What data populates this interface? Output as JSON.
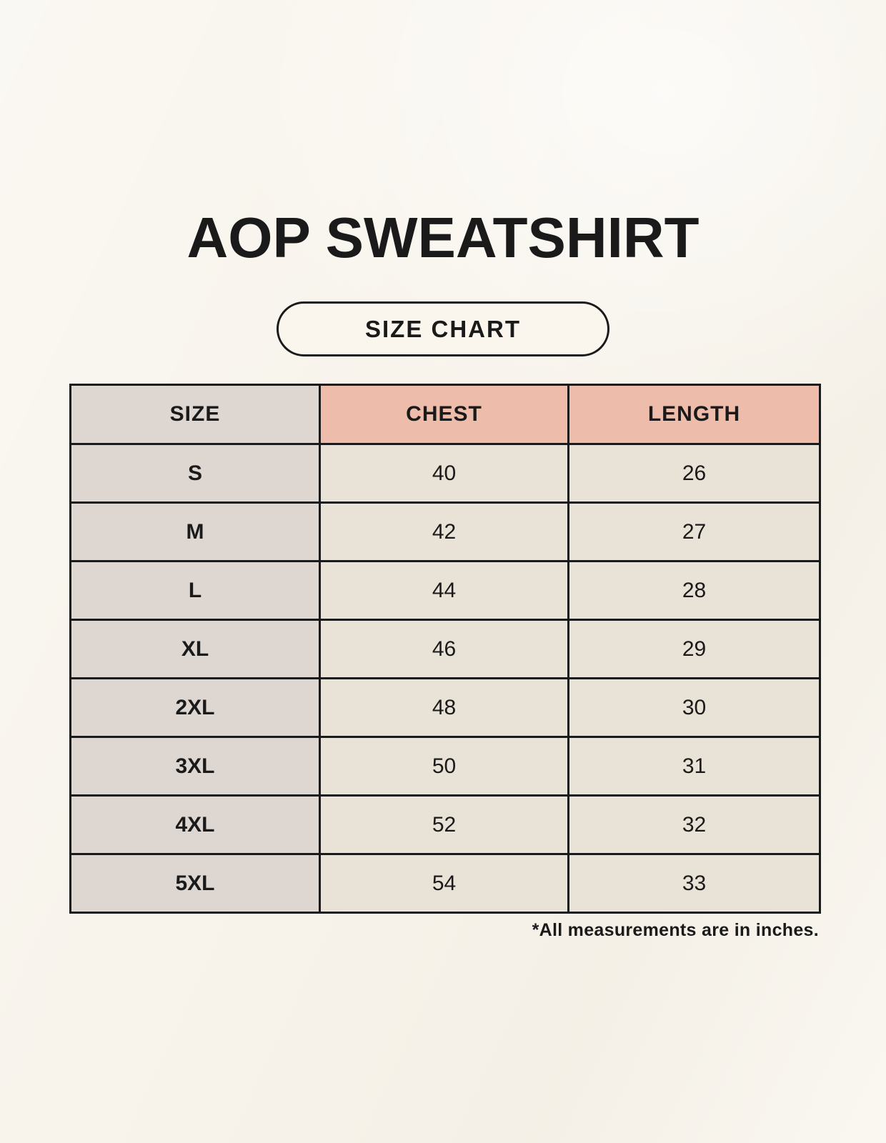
{
  "page": {
    "title": "AOP SWEATSHIRT",
    "badge": "SIZE CHART",
    "footnote": "*All measurements are in inches."
  },
  "colors": {
    "page_background": "#f8f4ec",
    "badge_background": "#faf6ee",
    "ink": "#1a1a1a",
    "header_pink": "#eebcab",
    "size_column_gray": "#ddd6d1",
    "cell_cream": "#e9e2d7"
  },
  "chart_data": {
    "type": "table",
    "title": "AOP SWEATSHIRT",
    "subtitle": "SIZE CHART",
    "columns": [
      "SIZE",
      "CHEST",
      "LENGTH"
    ],
    "rows": [
      [
        "S",
        "40",
        "26"
      ],
      [
        "M",
        "42",
        "27"
      ],
      [
        "L",
        "44",
        "28"
      ],
      [
        "XL",
        "46",
        "29"
      ],
      [
        "2XL",
        "48",
        "30"
      ],
      [
        "3XL",
        "50",
        "31"
      ],
      [
        "4XL",
        "52",
        "32"
      ],
      [
        "5XL",
        "54",
        "33"
      ]
    ],
    "units_note": "*All measurements are in inches.",
    "layout": {
      "header_fill": [
        "#ddd6d1",
        "#eebcab",
        "#eebcab"
      ],
      "size_column_fill": "#ddd6d1",
      "value_cell_fill": "#e9e2d7",
      "grid": "3px solid black"
    }
  }
}
